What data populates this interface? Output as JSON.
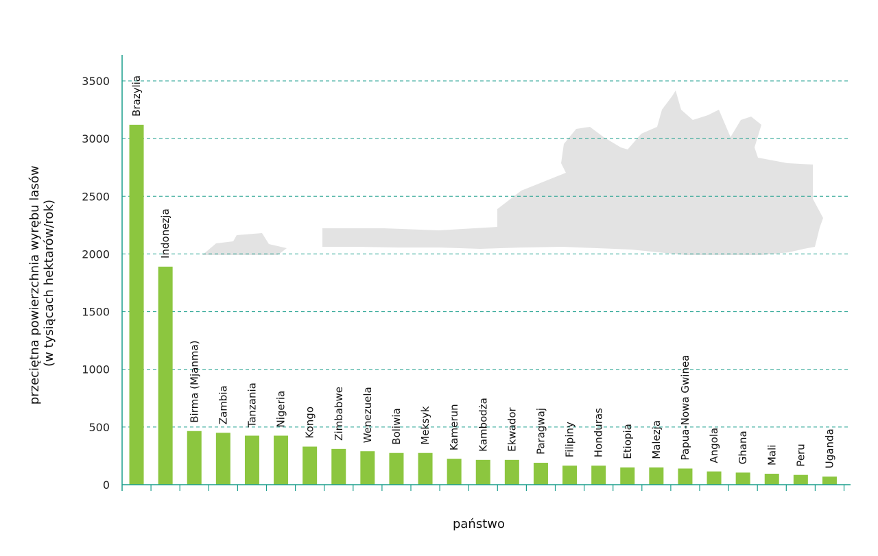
{
  "chart_data": {
    "type": "bar",
    "title": "",
    "xlabel": "państwo",
    "ylabel_lines": [
      "przeciętna powierzchnia wyrębu lasów",
      "(w tysiącach hektarów/rok)"
    ],
    "ylim": [
      0,
      3500
    ],
    "yticks": [
      0,
      500,
      1000,
      1500,
      2000,
      2500,
      3000,
      3500
    ],
    "grid": "horizontal dashed",
    "categories": [
      "Brazylia",
      "Indonezja",
      "Birma (Mjanma)",
      "Zambia",
      "Tanzania",
      "Nigeria",
      "Kongo",
      "Zimbabwe",
      "Wenezuela",
      "Boliwia",
      "Meksyk",
      "Kamerun",
      "Kambodża",
      "Ekwador",
      "Paragwaj",
      "Filipiny",
      "Honduras",
      "Etiopia",
      "Malezja",
      "Papua-Nowa Gwinea",
      "Angola",
      "Ghana",
      "Mali",
      "Peru",
      "Uganda"
    ],
    "values": [
      3120,
      1890,
      465,
      450,
      425,
      425,
      330,
      310,
      290,
      275,
      275,
      225,
      215,
      215,
      190,
      165,
      165,
      150,
      150,
      140,
      115,
      105,
      95,
      85,
      70
    ]
  },
  "colors": {
    "bar": "#8cc63f",
    "axis": "#1a9e8c",
    "grid": "#1a9e8c",
    "background_illustration": "#e3e3e3"
  },
  "decorations": {
    "background_icon": "palm-tree-illustration"
  }
}
